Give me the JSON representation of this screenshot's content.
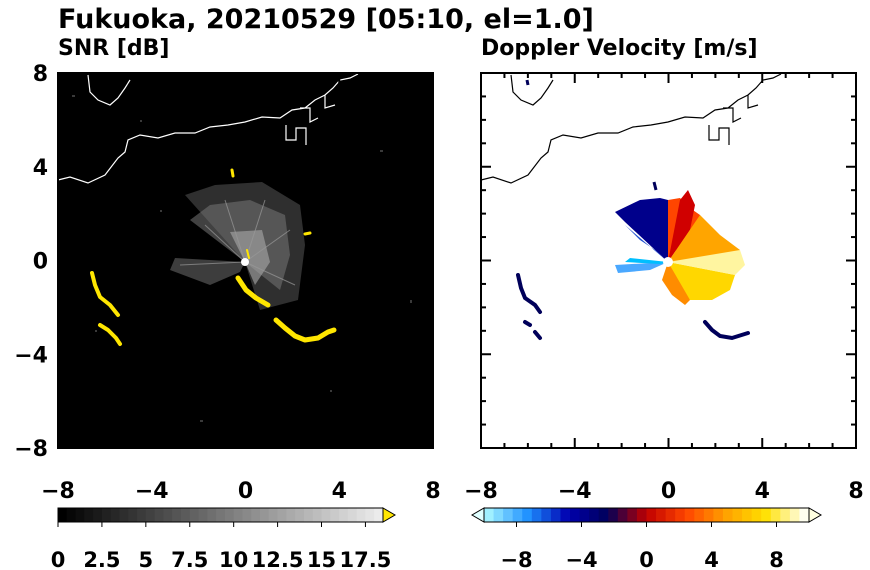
{
  "figure": {
    "title": "Fukuoka, 20210529 [05:10, el=1.0]"
  },
  "chart_data": [
    {
      "type": "heatmap",
      "panel_title": "SNR [dB]",
      "xlim": [
        -8,
        8
      ],
      "ylim": [
        -8,
        8
      ],
      "x_ticks": [
        "-8",
        "-4",
        "0",
        "4",
        "8"
      ],
      "y_ticks": [
        "8",
        "4",
        "0",
        "-4",
        "-8"
      ],
      "background_color": "#000000",
      "colorbar": {
        "ticks": [
          "0",
          "2.5",
          "5",
          "7.5",
          "10",
          "12.5",
          "15",
          "17.5"
        ],
        "tick_values": [
          0,
          2.5,
          5,
          7.5,
          10,
          12.5,
          15,
          17.5
        ],
        "range": [
          0,
          18.5
        ],
        "colors": [
          "#000000",
          "#ffffff"
        ],
        "extend_max_color": "#ffe600"
      },
      "strong_echo_color": "#ffe600"
    },
    {
      "type": "heatmap",
      "panel_title": "Doppler Velocity [m/s]",
      "xlim": [
        -8,
        8
      ],
      "ylim": [
        -8,
        8
      ],
      "x_ticks": [
        "-8",
        "-4",
        "0",
        "4",
        "8"
      ],
      "y_ticks": [],
      "background_color": "#ffffff",
      "colorbar": {
        "ticks": [
          "−8",
          "−4",
          "0",
          "4",
          "8"
        ],
        "tick_values": [
          -8,
          -4,
          0,
          4,
          8
        ],
        "range": [
          -10,
          10
        ],
        "colors": [
          "#a0f0ff",
          "#1e90ff",
          "#0000b0",
          "#00005a",
          "#c00000",
          "#ff4500",
          "#ffa000",
          "#ffe000",
          "#fffff0"
        ],
        "extend_min_color": "#e0ffff",
        "extend_max_color": "#ffffe0"
      }
    }
  ]
}
